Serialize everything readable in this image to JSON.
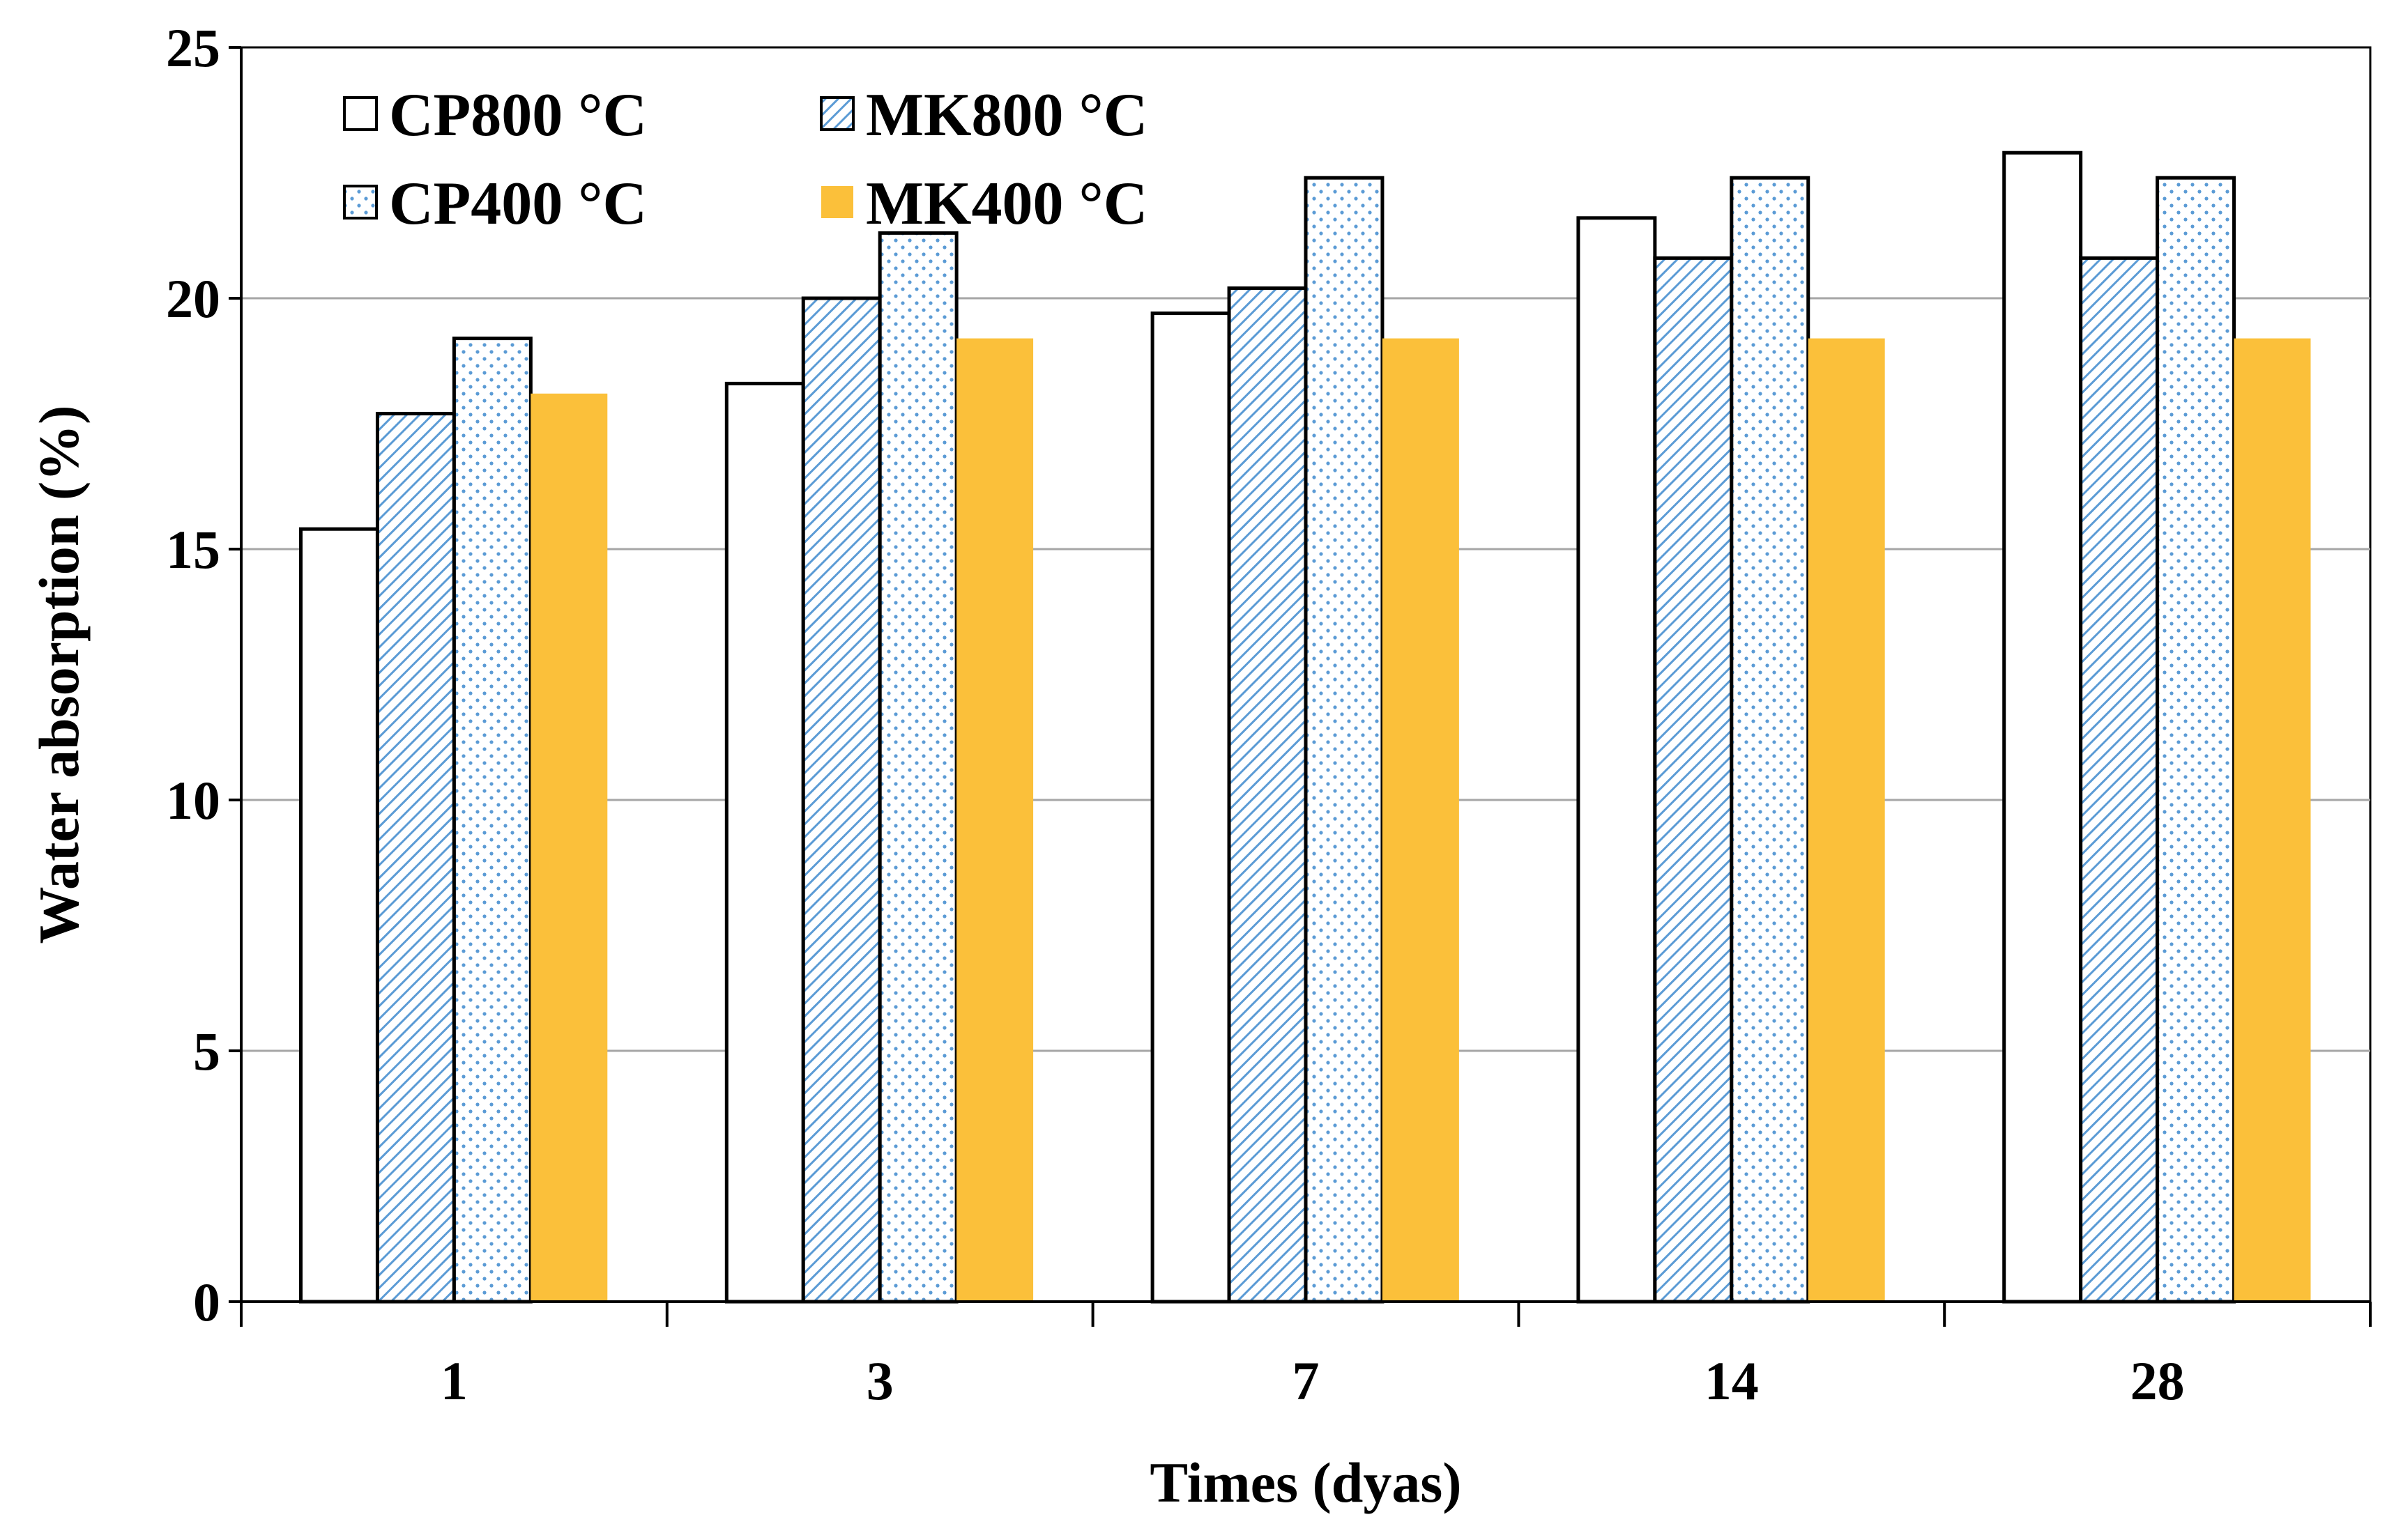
{
  "chart_data": {
    "type": "bar",
    "title": "",
    "xlabel": "Times (dyas)",
    "ylabel": "Water absorption (%)",
    "ylim": [
      0,
      25
    ],
    "yticks": [
      0,
      5,
      10,
      15,
      20,
      25
    ],
    "grid": true,
    "legend_position": "top-left",
    "categories": [
      "1",
      "3",
      "7",
      "14",
      "28"
    ],
    "series": [
      {
        "name": "CP800 °C",
        "values": [
          15.4,
          18.3,
          19.7,
          21.6,
          22.9
        ],
        "pattern": "plain",
        "color": "#ffffff"
      },
      {
        "name": "MK800 °C",
        "values": [
          17.7,
          20.0,
          20.2,
          20.8,
          20.8
        ],
        "pattern": "diagonal",
        "color": "#5b9bd5"
      },
      {
        "name": "CP400 °C",
        "values": [
          19.2,
          21.3,
          22.4,
          22.4,
          22.4
        ],
        "pattern": "dots",
        "color": "#5b9bd5"
      },
      {
        "name": "MK400 °C",
        "values": [
          18.1,
          19.2,
          19.2,
          19.2,
          19.2
        ],
        "pattern": "solid",
        "color": "#fbc03a"
      }
    ]
  }
}
